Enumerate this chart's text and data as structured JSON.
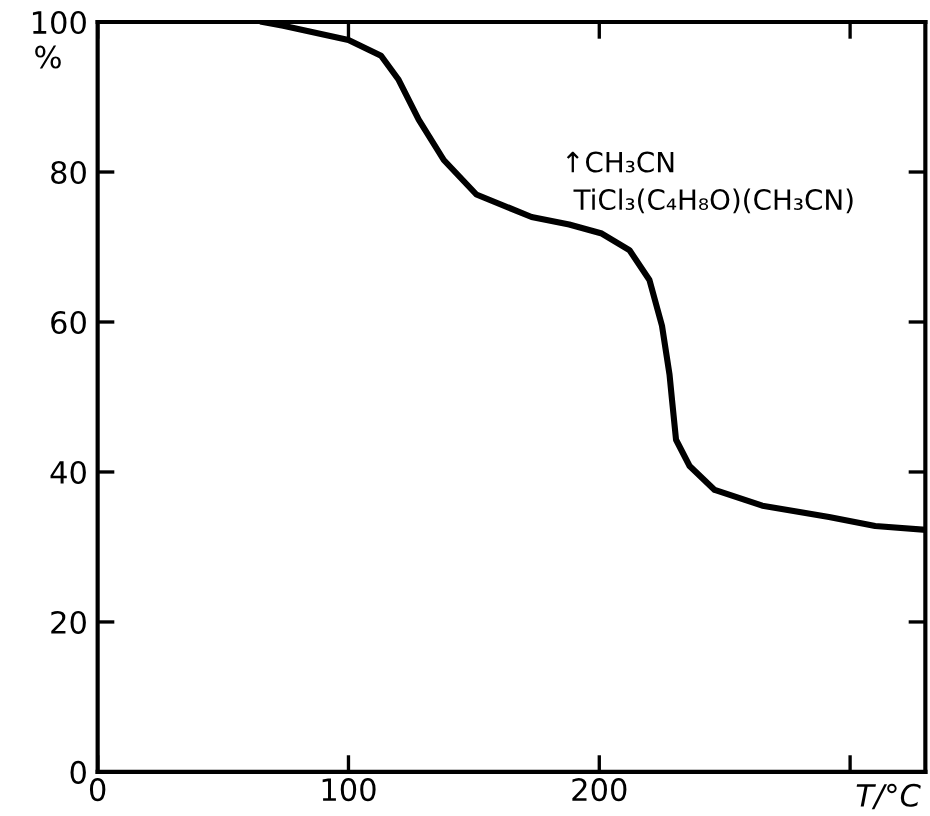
{
  "chart_data": {
    "type": "line",
    "xlabel": "T/°C",
    "ylabel": "%",
    "x": [
      66,
      74,
      100,
      113,
      120,
      128,
      138,
      151,
      173,
      188,
      201,
      212,
      220,
      225,
      228,
      229,
      230.6,
      236,
      246,
      265,
      291.6,
      310,
      329.6
    ],
    "series": [
      {
        "color": "#000000",
        "values": [
          100,
          99.5,
          97.6,
          95.5,
          92.3,
          87,
          81.6,
          77,
          74,
          73,
          71.8,
          69.6,
          65.6,
          59.5,
          53,
          49.6,
          44.3,
          40.8,
          37.6,
          35.5,
          34,
          32.8,
          32.3
        ]
      }
    ],
    "xlim": [
      0,
      330
    ],
    "ylim": [
      0,
      100
    ],
    "xticks": [
      0,
      100,
      200,
      {
        "value": 300,
        "label": null
      }
    ],
    "yticks": [
      0,
      20,
      40,
      60,
      80,
      100
    ],
    "annotations": [
      "↑CH₃CN",
      "TiCl₃(C₄H₈O)(CH₃CN)"
    ],
    "grid": false,
    "legend": false,
    "marker": "none",
    "line_style": "solid"
  }
}
